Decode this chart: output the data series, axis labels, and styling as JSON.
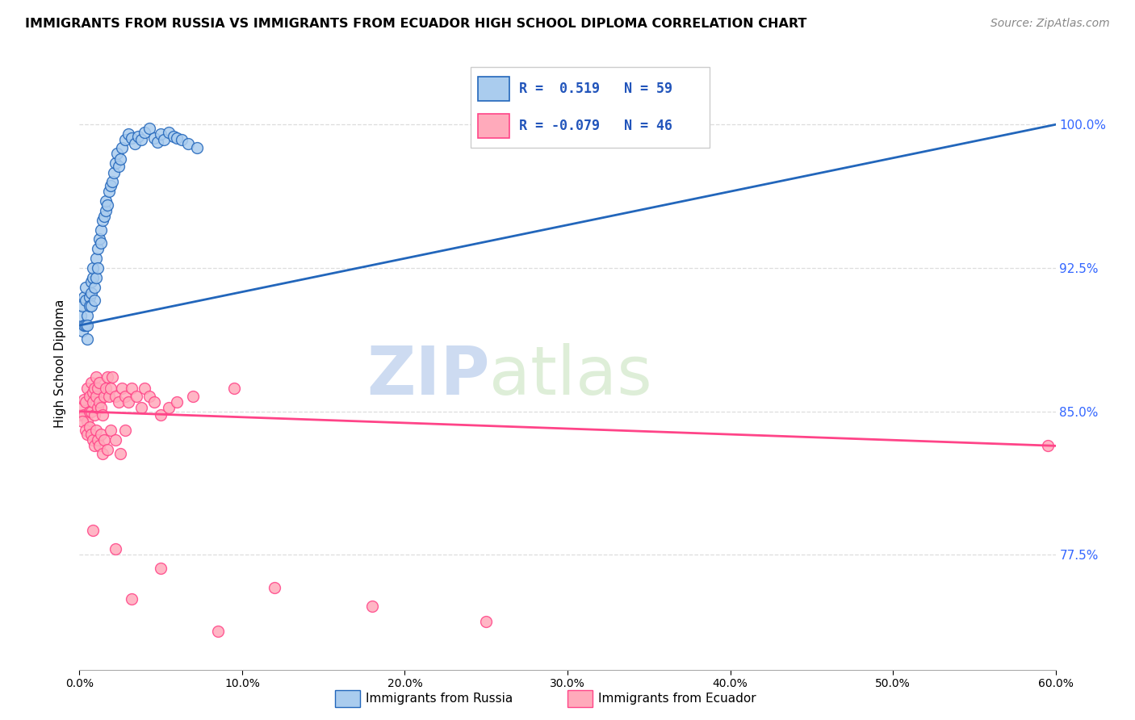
{
  "title": "IMMIGRANTS FROM RUSSIA VS IMMIGRANTS FROM ECUADOR HIGH SCHOOL DIPLOMA CORRELATION CHART",
  "source": "Source: ZipAtlas.com",
  "ylabel": "High School Diploma",
  "ytick_labels": [
    "100.0%",
    "92.5%",
    "85.0%",
    "77.5%"
  ],
  "ytick_values": [
    1.0,
    0.925,
    0.85,
    0.775
  ],
  "xmin": 0.0,
  "xmax": 0.6,
  "ymin": 0.715,
  "ymax": 1.035,
  "legend_r_russia": " 0.519",
  "legend_n_russia": "59",
  "legend_r_ecuador": "-0.079",
  "legend_n_ecuador": "46",
  "russia_color": "#AACCEE",
  "ecuador_color": "#FFAABB",
  "russia_line_color": "#2266BB",
  "ecuador_line_color": "#FF4488",
  "russia_x": [
    0.001,
    0.002,
    0.002,
    0.003,
    0.003,
    0.004,
    0.004,
    0.004,
    0.005,
    0.005,
    0.005,
    0.006,
    0.006,
    0.007,
    0.007,
    0.007,
    0.008,
    0.008,
    0.009,
    0.009,
    0.01,
    0.01,
    0.011,
    0.011,
    0.012,
    0.013,
    0.013,
    0.014,
    0.015,
    0.016,
    0.016,
    0.017,
    0.018,
    0.019,
    0.02,
    0.021,
    0.022,
    0.023,
    0.024,
    0.025,
    0.026,
    0.028,
    0.03,
    0.032,
    0.034,
    0.036,
    0.038,
    0.04,
    0.043,
    0.046,
    0.048,
    0.05,
    0.052,
    0.055,
    0.058,
    0.06,
    0.063,
    0.067,
    0.072
  ],
  "russia_y": [
    0.9,
    0.905,
    0.892,
    0.91,
    0.895,
    0.908,
    0.895,
    0.915,
    0.9,
    0.895,
    0.888,
    0.91,
    0.905,
    0.912,
    0.918,
    0.905,
    0.92,
    0.925,
    0.915,
    0.908,
    0.92,
    0.93,
    0.935,
    0.925,
    0.94,
    0.938,
    0.945,
    0.95,
    0.952,
    0.955,
    0.96,
    0.958,
    0.965,
    0.968,
    0.97,
    0.975,
    0.98,
    0.985,
    0.978,
    0.982,
    0.988,
    0.992,
    0.995,
    0.993,
    0.99,
    0.994,
    0.992,
    0.996,
    0.998,
    0.993,
    0.991,
    0.995,
    0.992,
    0.996,
    0.994,
    0.993,
    0.992,
    0.99,
    0.988
  ],
  "ecuador_x": [
    0.001,
    0.002,
    0.003,
    0.003,
    0.004,
    0.005,
    0.005,
    0.006,
    0.006,
    0.007,
    0.007,
    0.008,
    0.008,
    0.009,
    0.009,
    0.01,
    0.01,
    0.011,
    0.011,
    0.012,
    0.012,
    0.013,
    0.014,
    0.015,
    0.016,
    0.017,
    0.018,
    0.019,
    0.02,
    0.022,
    0.024,
    0.026,
    0.028,
    0.03,
    0.032,
    0.035,
    0.038,
    0.04,
    0.043,
    0.046,
    0.05,
    0.055,
    0.06,
    0.07,
    0.095,
    0.595
  ],
  "ecuador_y": [
    0.848,
    0.852,
    0.856,
    0.848,
    0.855,
    0.845,
    0.862,
    0.858,
    0.85,
    0.865,
    0.85,
    0.86,
    0.855,
    0.862,
    0.848,
    0.868,
    0.858,
    0.862,
    0.852,
    0.865,
    0.855,
    0.852,
    0.848,
    0.858,
    0.862,
    0.868,
    0.858,
    0.862,
    0.868,
    0.858,
    0.855,
    0.862,
    0.858,
    0.855,
    0.862,
    0.858,
    0.852,
    0.862,
    0.858,
    0.855,
    0.848,
    0.852,
    0.855,
    0.858,
    0.862,
    0.832
  ],
  "ecuador_low_x": [
    0.002,
    0.004,
    0.005,
    0.006,
    0.007,
    0.008,
    0.009,
    0.01,
    0.011,
    0.012,
    0.013,
    0.014,
    0.015,
    0.017,
    0.019,
    0.022,
    0.025,
    0.028
  ],
  "ecuador_low_y": [
    0.845,
    0.84,
    0.838,
    0.842,
    0.838,
    0.835,
    0.832,
    0.84,
    0.835,
    0.832,
    0.838,
    0.828,
    0.835,
    0.83,
    0.84,
    0.835,
    0.828,
    0.84
  ],
  "ecuador_outlier_x": [
    0.008,
    0.022,
    0.032,
    0.05,
    0.085,
    0.12,
    0.18,
    0.25
  ],
  "ecuador_outlier_y": [
    0.788,
    0.778,
    0.752,
    0.768,
    0.735,
    0.758,
    0.748,
    0.74
  ],
  "russia_line_x0": 0.0,
  "russia_line_y0": 0.895,
  "russia_line_x1": 0.6,
  "russia_line_y1": 1.0,
  "ecuador_line_x0": 0.0,
  "ecuador_line_y0": 0.85,
  "ecuador_line_x1": 0.6,
  "ecuador_line_y1": 0.832,
  "bg_color": "#FFFFFF",
  "grid_color": "#DDDDDD",
  "watermark_zip": "ZIP",
  "watermark_atlas": "atlas"
}
